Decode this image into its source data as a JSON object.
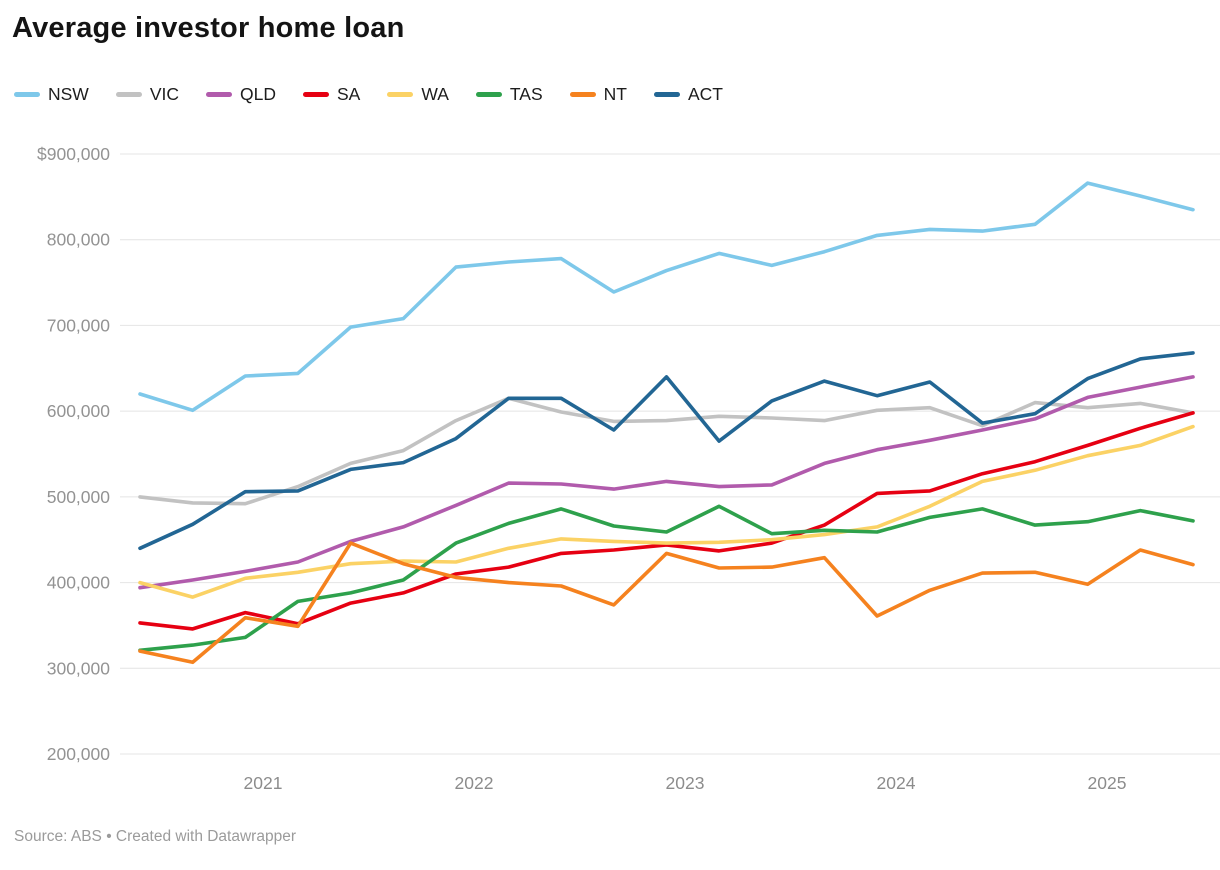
{
  "title": "Average investor home loan",
  "footer": "Source: ABS • Created with Datawrapper",
  "colors": {
    "grid": "#e4e4e4",
    "axis_label": "#939393",
    "xaxis_label": "#8c8c8c",
    "title_text": "#141414",
    "background": "#ffffff"
  },
  "chart_data": {
    "type": "line",
    "x": [
      "2020-Q2",
      "2020-Q3",
      "2020-Q4",
      "2021-Q1",
      "2021-Q2",
      "2021-Q3",
      "2021-Q4",
      "2022-Q1",
      "2022-Q2",
      "2022-Q3",
      "2022-Q4",
      "2023-Q1",
      "2023-Q2",
      "2023-Q3",
      "2023-Q4",
      "2024-Q1",
      "2024-Q2",
      "2024-Q3",
      "2024-Q4",
      "2025-Q1",
      "2025-Q2"
    ],
    "xtick_labels": [
      "2021",
      "2022",
      "2023",
      "2024",
      "2025"
    ],
    "ylim": [
      200000,
      900000
    ],
    "ytick_step": 100000,
    "ytick_labels": [
      "$900,000",
      "800,000",
      "700,000",
      "600,000",
      "500,000",
      "400,000",
      "300,000",
      "200,000"
    ],
    "grid": true,
    "legend_position": "top",
    "series": [
      {
        "name": "NSW",
        "color": "#7ec8ea",
        "values": [
          620000,
          601000,
          641000,
          644000,
          698000,
          708000,
          768000,
          774000,
          778000,
          739000,
          764000,
          784000,
          770000,
          786000,
          805000,
          812000,
          810000,
          818000,
          866000,
          851000,
          835000
        ]
      },
      {
        "name": "VIC",
        "color": "#c2c2c2",
        "values": [
          500000,
          493000,
          492000,
          512000,
          539000,
          554000,
          589000,
          615000,
          599000,
          588000,
          589000,
          594000,
          592000,
          589000,
          601000,
          604000,
          583000,
          610000,
          604000,
          609000,
          598000
        ]
      },
      {
        "name": "QLD",
        "color": "#b15bac",
        "values": [
          394000,
          403000,
          413000,
          424000,
          448000,
          465000,
          490000,
          516000,
          515000,
          509000,
          518000,
          512000,
          514000,
          539000,
          555000,
          566000,
          578000,
          591000,
          616000,
          628000,
          640000
        ]
      },
      {
        "name": "SA",
        "color": "#e60012",
        "values": [
          353000,
          346000,
          365000,
          352000,
          376000,
          388000,
          410000,
          418000,
          434000,
          438000,
          444000,
          437000,
          446000,
          467000,
          504000,
          507000,
          527000,
          541000,
          560000,
          580000,
          598000
        ]
      },
      {
        "name": "WA",
        "color": "#fbd265",
        "values": [
          400000,
          383000,
          405000,
          412000,
          422000,
          425000,
          424000,
          440000,
          451000,
          448000,
          446000,
          447000,
          450000,
          456000,
          465000,
          489000,
          518000,
          531000,
          548000,
          560000,
          582000
        ]
      },
      {
        "name": "TAS",
        "color": "#2ea14c",
        "values": [
          321000,
          327000,
          336000,
          378000,
          388000,
          403000,
          446000,
          469000,
          486000,
          466000,
          459000,
          489000,
          457000,
          461000,
          459000,
          476000,
          486000,
          467000,
          471000,
          484000,
          472000
        ]
      },
      {
        "name": "NT",
        "color": "#f5821f",
        "values": [
          320000,
          307000,
          359000,
          349000,
          446000,
          422000,
          406000,
          400000,
          396000,
          374000,
          434000,
          417000,
          418000,
          429000,
          361000,
          391000,
          411000,
          412000,
          398000,
          438000,
          421000
        ]
      },
      {
        "name": "ACT",
        "color": "#226694",
        "values": [
          440000,
          468000,
          506000,
          507000,
          532000,
          540000,
          568000,
          615000,
          615000,
          578000,
          640000,
          565000,
          612000,
          635000,
          618000,
          634000,
          586000,
          597000,
          638000,
          661000,
          668000
        ]
      }
    ]
  }
}
